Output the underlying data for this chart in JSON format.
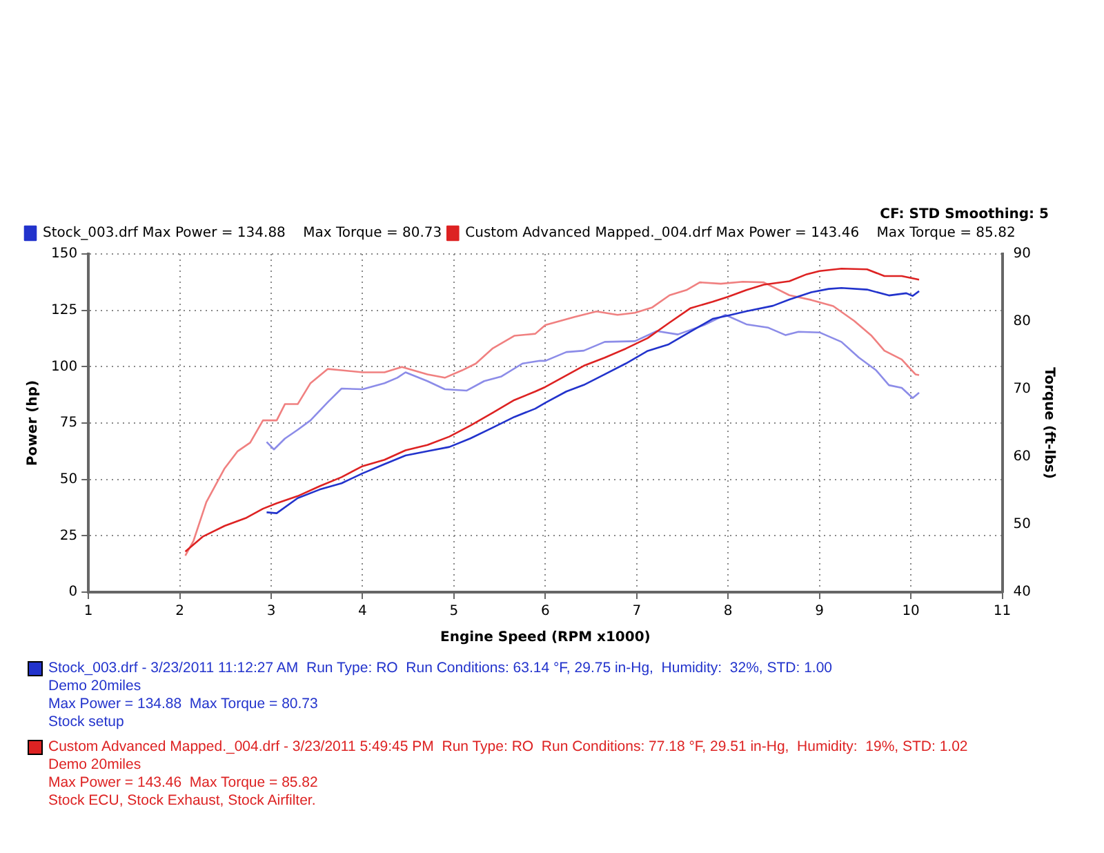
{
  "chart_data": {
    "type": "line",
    "xlabel": "Engine Speed (RPM x1000)",
    "ylabel": "Power (hp)",
    "y2label": "Torque (ft-lbs)",
    "xlim": [
      1,
      11
    ],
    "xticks": [
      1,
      2,
      3,
      4,
      5,
      6,
      7,
      8,
      9,
      10,
      11
    ],
    "ylim": [
      0,
      150
    ],
    "yticks": [
      0,
      25,
      50,
      75,
      100,
      125,
      150
    ],
    "y2lim": [
      40,
      90
    ],
    "y2ticks": [
      40,
      50,
      60,
      70,
      80,
      90
    ],
    "grid": true,
    "legend": "top left",
    "marker": "none",
    "line_style": "solid",
    "series": [
      {
        "name": "Stock_003.drf Max Power = 134.88    Max Torque = 80.73",
        "color": "#2233cc",
        "x": [
          2.95,
          3.06,
          3.29,
          3.53,
          3.77,
          4.0,
          4.24,
          4.47,
          4.71,
          4.95,
          5.18,
          5.42,
          5.66,
          5.89,
          6.0,
          6.23,
          6.42,
          6.65,
          6.88,
          7.12,
          7.35,
          7.59,
          7.83,
          8.0,
          8.2,
          8.49,
          8.67,
          8.91,
          9.1,
          9.24,
          9.52,
          9.76,
          9.95,
          10.02,
          10.09
        ],
        "values": [
          35.4,
          35,
          41.7,
          45.5,
          48.3,
          52.7,
          56.8,
          60.6,
          62.5,
          64.4,
          68.2,
          72.9,
          77.7,
          81.4,
          84,
          89,
          91.9,
          96.6,
          101.4,
          107,
          109.9,
          115.6,
          121.2,
          122.7,
          124.6,
          127,
          129.8,
          133,
          134.5,
          134.9,
          134.2,
          131.6,
          132.6,
          131.4,
          133.5
        ]
      },
      {
        "name": "Custom Advanced Mapped._004.drf Max Power = 143.46    Max Torque = 85.82",
        "color": "#dd2222",
        "x": [
          2.06,
          2.25,
          2.49,
          2.73,
          2.91,
          3.06,
          3.29,
          3.53,
          3.77,
          4.0,
          4.24,
          4.47,
          4.71,
          4.95,
          5.18,
          5.42,
          5.66,
          5.89,
          6.0,
          6.42,
          6.65,
          6.88,
          7.12,
          7.35,
          7.59,
          7.83,
          8.0,
          8.2,
          8.39,
          8.67,
          8.86,
          9.0,
          9.24,
          9.52,
          9.71,
          9.9,
          10.09
        ],
        "values": [
          18,
          24.6,
          29.4,
          33,
          37,
          39.4,
          42.6,
          47,
          51,
          55.9,
          58.7,
          62.9,
          65.3,
          69,
          73.9,
          79.5,
          85.2,
          89,
          91,
          100.4,
          104,
          108,
          112.7,
          119.3,
          126,
          128.8,
          131,
          134,
          136.4,
          137.9,
          141,
          142.4,
          143.5,
          143.2,
          140.2,
          140.2,
          138.6
        ]
      },
      {
        "color": "#8c8ce8",
        "axis": "y2",
        "x": [
          2.95,
          3.03,
          3.15,
          3.29,
          3.43,
          3.62,
          3.77,
          4.0,
          4.24,
          4.38,
          4.47,
          4.71,
          4.9,
          5.14,
          5.33,
          5.52,
          5.75,
          5.94,
          6.0,
          6.23,
          6.42,
          6.65,
          6.98,
          7.22,
          7.45,
          7.74,
          7.97,
          8.2,
          8.44,
          8.63,
          8.77,
          9.0,
          9.24,
          9.43,
          9.62,
          9.76,
          9.9,
          10.02,
          10.09
        ],
        "values": [
          62.2,
          61.1,
          62.7,
          64,
          65.4,
          68.1,
          70.1,
          70,
          70.9,
          71.7,
          72.5,
          71.2,
          70,
          69.8,
          71.2,
          71.9,
          73.8,
          74.2,
          74.2,
          75.5,
          75.7,
          77,
          77.1,
          78.6,
          78.1,
          79.5,
          81,
          79.6,
          79.1,
          78,
          78.5,
          78.4,
          77,
          74.7,
          72.8,
          70.6,
          70.2,
          68.7,
          69.5
        ]
      },
      {
        "color": "#f08080",
        "axis": "y2",
        "x": [
          2.06,
          2.15,
          2.29,
          2.49,
          2.63,
          2.77,
          2.91,
          3.06,
          3.15,
          3.29,
          3.43,
          3.62,
          3.77,
          4.0,
          4.24,
          4.43,
          4.71,
          4.9,
          5.09,
          5.24,
          5.42,
          5.66,
          5.89,
          6.0,
          6.32,
          6.56,
          6.79,
          6.98,
          7.17,
          7.36,
          7.55,
          7.69,
          7.92,
          8.16,
          8.39,
          8.67,
          8.91,
          9.15,
          9.38,
          9.57,
          9.71,
          9.9,
          10.05,
          10.09
        ],
        "values": [
          45.4,
          47.6,
          53.3,
          58.3,
          60.8,
          62.1,
          65.4,
          65.4,
          67.8,
          67.8,
          70.9,
          73,
          72.8,
          72.5,
          72.5,
          73.3,
          72.2,
          71.7,
          72.8,
          73.8,
          76,
          77.9,
          78.2,
          79.5,
          80.7,
          81.5,
          81,
          81.3,
          82.1,
          83.9,
          84.7,
          85.8,
          85.6,
          85.9,
          85.8,
          83.9,
          83.2,
          82.3,
          80.1,
          77.9,
          75.7,
          74.4,
          72.2,
          72.1
        ]
      }
    ],
    "annotations": [
      "CF: STD  Smoothing: 5",
      "Stock_003.drf - 3/23/2011 11:12:27 AM  Run Type: RO  Run Conditions: 63.14 °F, 29.75 in-Hg,  Humidity:  32%, STD: 1.00\nDemo 20miles\nMax Power = 134.88  Max Torque = 80.73\nStock setup",
      "Custom Advanced Mapped._004.drf - 3/23/2011 5:49:45 PM  Run Type: RO  Run Conditions: 77.18 °F, 29.51 in-Hg,  Humidity:  19%, STD: 1.02\nDemo 20miles\nMax Power = 143.46  Max Torque = 85.82\nStock ECU, Stock Exhaust, Stock Airfilter."
    ]
  }
}
